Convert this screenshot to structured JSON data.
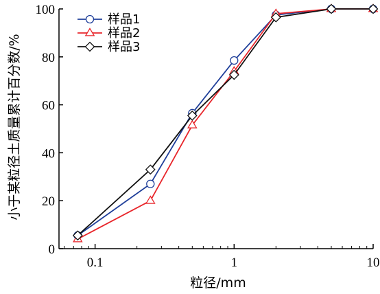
{
  "chart_data": {
    "type": "line",
    "title": "",
    "xlabel": "粒径/mm",
    "ylabel": "小于某粒径土质量累计百分数/%",
    "x_scale": "log",
    "xlim": [
      0.055,
      10
    ],
    "ylim": [
      0,
      100
    ],
    "x_ticks": [
      0.1,
      1,
      10
    ],
    "x_tick_labels": [
      "0.1",
      "1",
      "10"
    ],
    "y_ticks": [
      0,
      20,
      40,
      60,
      80,
      100
    ],
    "y_tick_labels": [
      "0",
      "20",
      "40",
      "60",
      "80",
      "100"
    ],
    "grid": false,
    "legend_position": "top-left",
    "series": [
      {
        "name": "样品1",
        "color": "#1f3f9a",
        "marker": "circle",
        "x": [
          0.075,
          0.25,
          0.5,
          1,
          2,
          5,
          10
        ],
        "y": [
          5.5,
          27,
          56.5,
          78.5,
          97.5,
          100,
          100
        ]
      },
      {
        "name": "样品2",
        "color": "#e8262b",
        "marker": "triangle",
        "x": [
          0.075,
          0.25,
          0.5,
          1,
          2,
          5,
          10
        ],
        "y": [
          4,
          20,
          51.5,
          74,
          98,
          100,
          100
        ]
      },
      {
        "name": "样品3",
        "color": "#111111",
        "marker": "diamond",
        "x": [
          0.075,
          0.25,
          0.5,
          1,
          2,
          5,
          10
        ],
        "y": [
          5.5,
          33,
          55.5,
          72.5,
          96.5,
          100,
          100
        ]
      }
    ]
  }
}
